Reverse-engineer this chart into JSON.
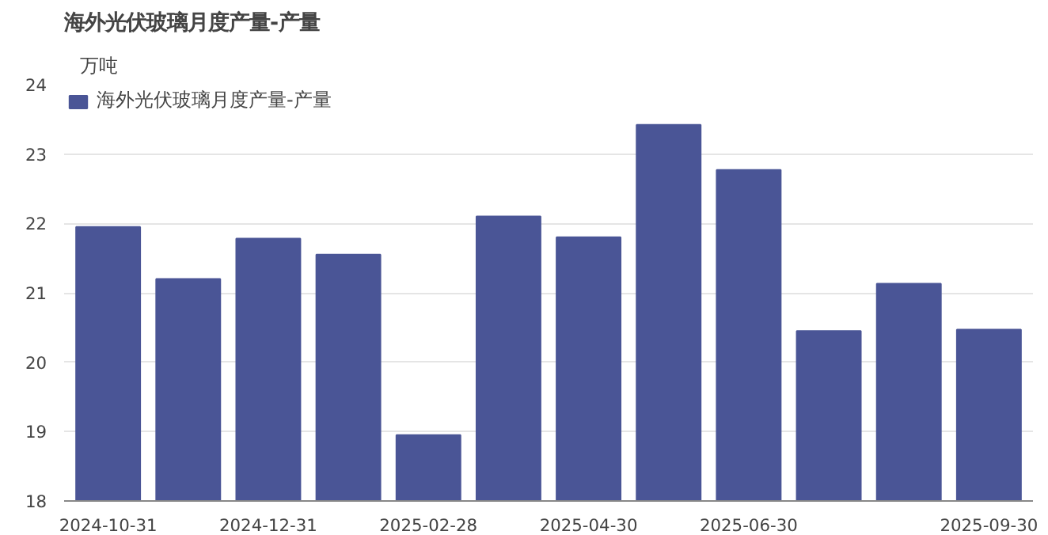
{
  "chart_data": {
    "type": "bar",
    "title": "海外光伏玻璃月度产量-产量",
    "ylabel": "万吨",
    "categories": [
      "2024-10-31",
      null,
      "2024-12-31",
      null,
      "2025-02-28",
      null,
      "2025-04-30",
      null,
      "2025-06-30",
      null,
      null,
      "2025-09-30"
    ],
    "series": [
      {
        "name": "海外光伏玻璃月度产量-产量",
        "color": "#4a5596",
        "values": [
          21.95,
          21.2,
          21.78,
          21.55,
          18.95,
          22.1,
          21.8,
          23.42,
          22.77,
          20.45,
          21.13,
          20.47
        ]
      }
    ],
    "ylim": [
      18,
      24
    ],
    "yticks": [
      18,
      19,
      20,
      21,
      22,
      23,
      24
    ],
    "grid": "y",
    "legend": "top left"
  }
}
